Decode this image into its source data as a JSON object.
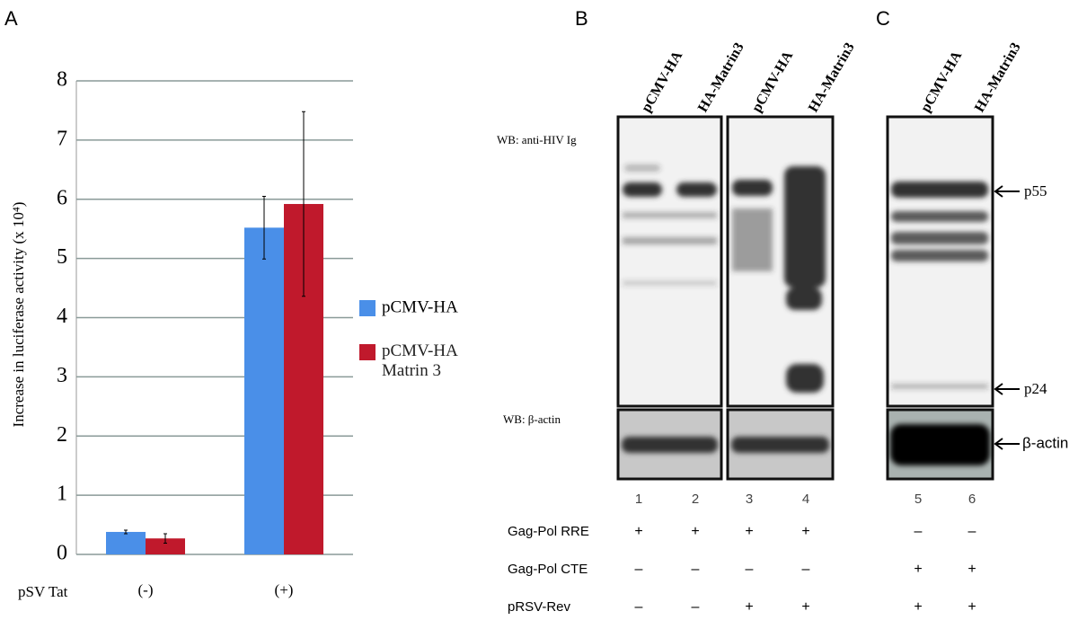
{
  "panels": [
    "A",
    "B",
    "C"
  ],
  "chart_data": {
    "type": "bar",
    "y_label": "Increase in luciferase activity (x 10⁴)",
    "x_label": "pSV Tat",
    "categories": [
      "(-)",
      "(+)"
    ],
    "series": [
      {
        "name": "pCMV-HA",
        "color": "#4a8fe8",
        "values": [
          0.38,
          5.52
        ],
        "errors": [
          0.03,
          0.53
        ]
      },
      {
        "name": "pCMV-HA Matrin 3",
        "color": "#c0192c",
        "values": [
          0.27,
          5.92
        ],
        "errors": [
          0.08,
          1.56
        ]
      }
    ],
    "ylim": [
      0,
      8
    ],
    "yticks": [
      0,
      1,
      2,
      3,
      4,
      5,
      6,
      7,
      8
    ],
    "grid": true
  },
  "blots": {
    "lane_labels": [
      "pCMV-HA",
      "HA-Matrin3",
      "pCMV-HA",
      "HA-Matrin3",
      "pCMV-HA",
      "HA-Matrin3"
    ],
    "wb_labels": [
      "WB: anti-HIV Ig",
      "WB: β-actin"
    ],
    "markers": [
      "p55",
      "p24",
      "β-actin"
    ],
    "lane_numbers": [
      "1",
      "2",
      "3",
      "4",
      "5",
      "6"
    ],
    "conditions": [
      {
        "label": "Gag-Pol RRE",
        "signs": [
          "+",
          "+",
          "+",
          "+",
          "–",
          "–"
        ]
      },
      {
        "label": "Gag-Pol CTE",
        "signs": [
          "–",
          "–",
          "–",
          "–",
          "+",
          "+"
        ]
      },
      {
        "label": "pRSV-Rev",
        "signs": [
          "–",
          "–",
          "+",
          "+",
          "+",
          "+"
        ]
      }
    ]
  }
}
